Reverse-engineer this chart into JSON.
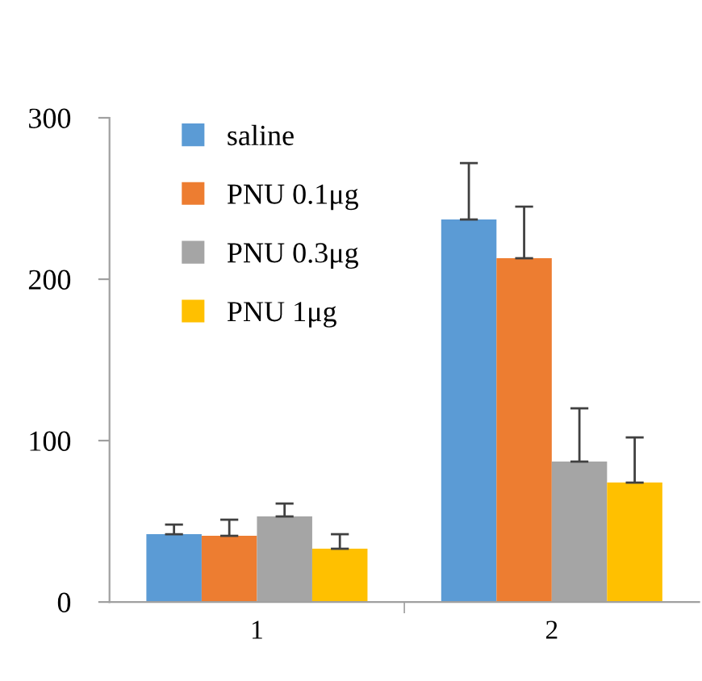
{
  "chart_data": {
    "type": "bar",
    "categories": [
      "1",
      "2"
    ],
    "series": [
      {
        "name": "saline",
        "color": "#5b9bd5",
        "values": [
          42,
          237
        ],
        "errors": [
          [
            42,
            48
          ],
          [
            237,
            272
          ]
        ]
      },
      {
        "name": "PNU 0.1μg",
        "color": "#ed7d31",
        "values": [
          41,
          213
        ],
        "errors": [
          [
            41,
            51
          ],
          [
            213,
            245
          ]
        ]
      },
      {
        "name": "PNU 0.3μg",
        "color": "#a5a5a5",
        "values": [
          53,
          87
        ],
        "errors": [
          [
            53,
            61
          ],
          [
            87,
            120
          ]
        ]
      },
      {
        "name": "PNU 1μg",
        "color": "#ffc000",
        "values": [
          33,
          74
        ],
        "errors": [
          [
            33,
            42
          ],
          [
            74,
            102
          ]
        ]
      }
    ],
    "ylim": [
      0,
      300
    ],
    "yticks": [
      0,
      100,
      200,
      300
    ],
    "grid": false,
    "legend": "top left"
  }
}
